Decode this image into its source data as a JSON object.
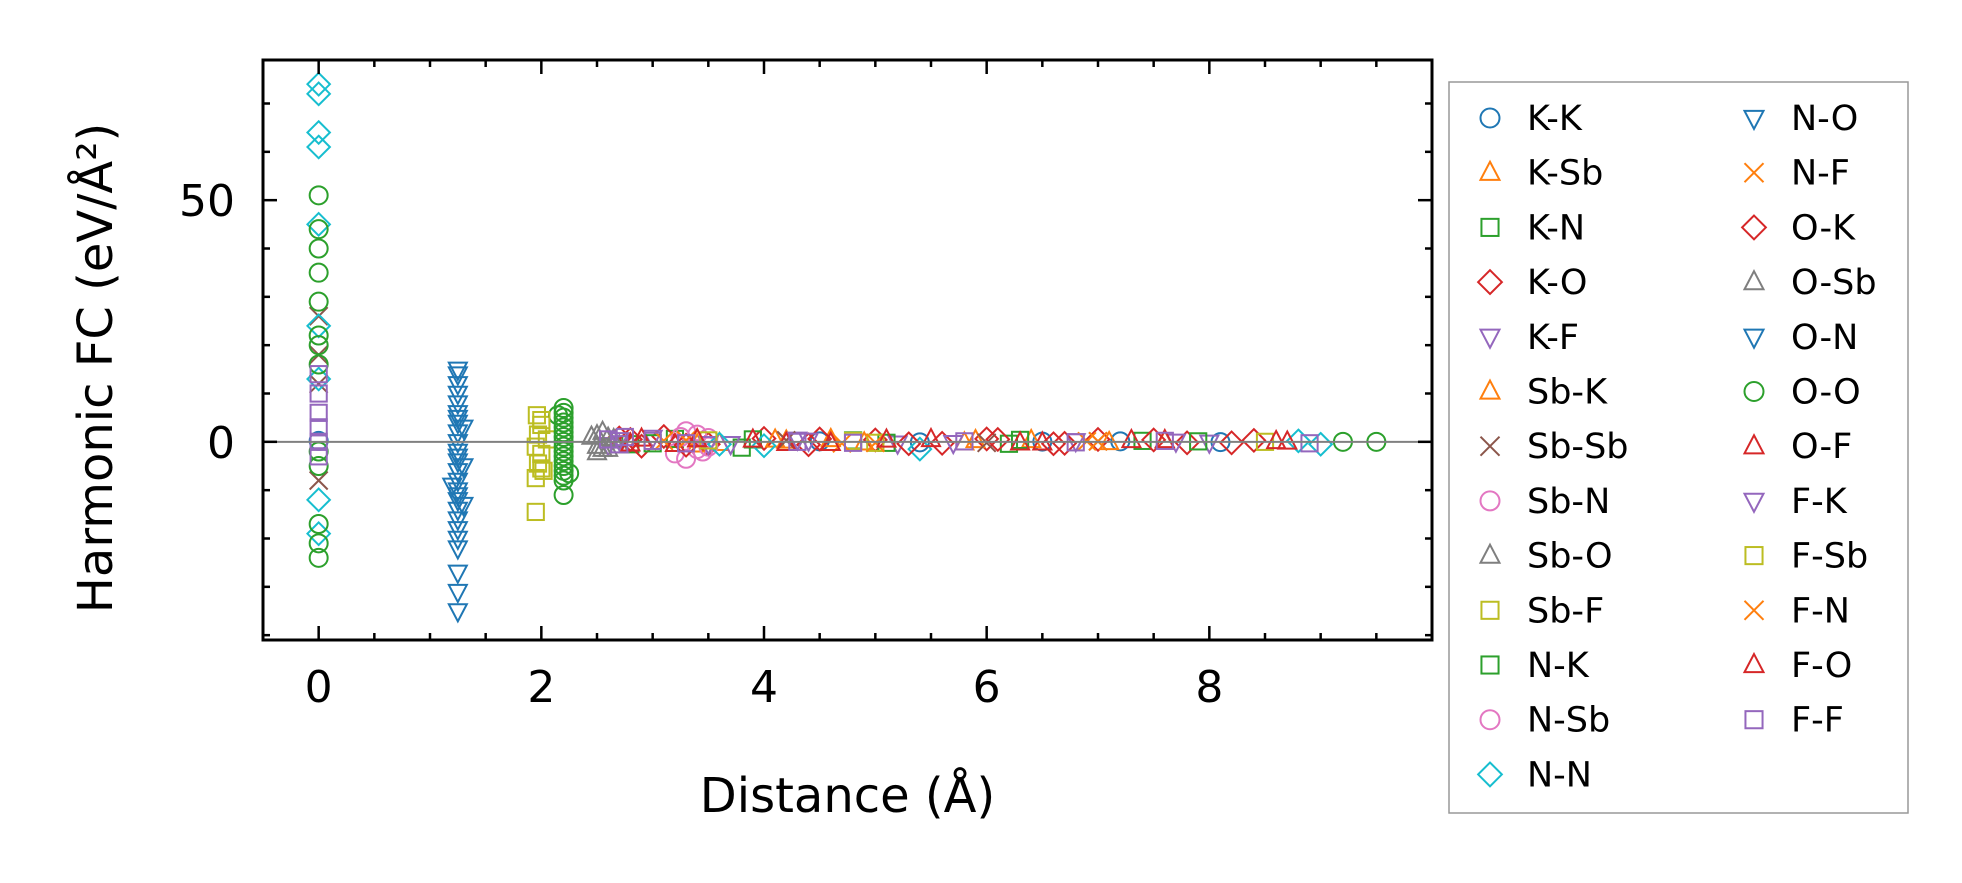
{
  "chart_data": {
    "type": "scatter",
    "xlabel": "Distance (Å)",
    "ylabel": "Harmonic FC (eV/Å²)",
    "xlim": [
      -0.5,
      10.0
    ],
    "ylim": [
      -41,
      79
    ],
    "xticks": [
      0,
      2,
      4,
      6,
      8
    ],
    "yticks": [
      0,
      50
    ],
    "x_minor_step": 0.5,
    "y_minor_step": 10,
    "zero_line": true,
    "legend_position": "outside-right",
    "series": [
      {
        "name": "K-K",
        "marker": "circle",
        "color": "#1f77b4",
        "points": [
          [
            0,
            0.2
          ],
          [
            4.5,
            0.1
          ],
          [
            5.4,
            -0.1
          ],
          [
            6.5,
            0.05
          ],
          [
            7.2,
            0.1
          ],
          [
            8.1,
            -0.05
          ]
        ]
      },
      {
        "name": "K-Sb",
        "marker": "triangle-up",
        "color": "#ff7f0e",
        "points": [
          [
            3.4,
            0.4
          ],
          [
            3.6,
            -0.3
          ],
          [
            4.2,
            0.2
          ],
          [
            4.6,
            0.5
          ],
          [
            5.8,
            -0.2
          ],
          [
            6.4,
            0.3
          ],
          [
            7.6,
            0.1
          ]
        ]
      },
      {
        "name": "K-N",
        "marker": "square",
        "color": "#2ca02c",
        "points": [
          [
            2.8,
            -0.5
          ],
          [
            3.2,
            0.6
          ],
          [
            3.8,
            -1.2
          ],
          [
            4.8,
            0.3
          ],
          [
            6.2,
            -0.4
          ],
          [
            7.4,
            0.2
          ]
        ]
      },
      {
        "name": "K-O",
        "marker": "diamond",
        "color": "#d62728",
        "points": [
          [
            2.7,
            0.8
          ],
          [
            2.9,
            -0.9
          ],
          [
            3.1,
            1.1
          ],
          [
            3.5,
            -0.5
          ],
          [
            4.0,
            0.7
          ],
          [
            4.4,
            -0.6
          ],
          [
            5.0,
            0.4
          ],
          [
            5.6,
            -0.3
          ],
          [
            6.0,
            0.6
          ],
          [
            6.6,
            -0.4
          ],
          [
            7.0,
            0.5
          ],
          [
            7.8,
            -0.2
          ],
          [
            8.4,
            0.3
          ]
        ]
      },
      {
        "name": "K-F",
        "marker": "triangle-down",
        "color": "#9467bd",
        "points": [
          [
            2.6,
            -0.6
          ],
          [
            3.0,
            0.9
          ],
          [
            3.7,
            -0.4
          ],
          [
            4.3,
            0.5
          ],
          [
            5.2,
            -0.3
          ],
          [
            6.8,
            0.2
          ],
          [
            8.0,
            -0.1
          ]
        ]
      },
      {
        "name": "Sb-K",
        "marker": "triangle-up",
        "color": "#ff7f0e",
        "points": [
          [
            3.4,
            -0.6
          ],
          [
            4.1,
            0.4
          ],
          [
            4.9,
            -0.2
          ],
          [
            5.9,
            0.3
          ],
          [
            7.1,
            -0.1
          ]
        ]
      },
      {
        "name": "Sb-Sb",
        "marker": "x",
        "color": "#8c564b",
        "points": [
          [
            0,
            26
          ],
          [
            0,
            18
          ],
          [
            0,
            12
          ],
          [
            0,
            -8
          ],
          [
            4.2,
            0.3
          ],
          [
            6.0,
            -0.2
          ],
          [
            7.0,
            0.1
          ]
        ]
      },
      {
        "name": "Sb-N",
        "marker": "circle",
        "color": "#e377c2",
        "points": [
          [
            3.2,
            -2.4
          ],
          [
            3.3,
            -3.5
          ],
          [
            3.4,
            1.5
          ],
          [
            3.5,
            -1.0
          ],
          [
            3.3,
            2.2
          ],
          [
            3.45,
            -2.0
          ]
        ]
      },
      {
        "name": "Sb-O",
        "marker": "triangle-up",
        "color": "#7f7f7f",
        "points": [
          [
            2.5,
            1.3
          ],
          [
            2.55,
            -1.5
          ],
          [
            2.6,
            0.8
          ],
          [
            2.5,
            -2.2
          ],
          [
            2.65,
            0.5
          ],
          [
            2.7,
            -0.8
          ]
        ]
      },
      {
        "name": "Sb-F",
        "marker": "square",
        "color": "#bcbd22",
        "points": [
          [
            1.95,
            -14.5
          ],
          [
            1.95,
            -7.5
          ],
          [
            1.97,
            -4.5
          ],
          [
            2.0,
            -2.5
          ],
          [
            1.97,
            1.5
          ],
          [
            2.0,
            3.5
          ],
          [
            1.96,
            5.5
          ],
          [
            2.02,
            -6
          ],
          [
            2.05,
            0.5
          ],
          [
            4.8,
            0.2
          ],
          [
            8.5,
            0.0
          ]
        ]
      },
      {
        "name": "N-K",
        "marker": "square",
        "color": "#2ca02c",
        "points": [
          [
            3.0,
            -0.3
          ],
          [
            3.9,
            0.5
          ],
          [
            5.1,
            -0.2
          ],
          [
            6.3,
            0.4
          ],
          [
            7.9,
            0.1
          ]
        ]
      },
      {
        "name": "N-Sb",
        "marker": "circle",
        "color": "#e377c2",
        "points": [
          [
            3.25,
            1.0
          ],
          [
            3.4,
            -1.5
          ],
          [
            3.5,
            0.8
          ]
        ]
      },
      {
        "name": "N-N",
        "marker": "diamond",
        "color": "#17becf",
        "points": [
          [
            0,
            74
          ],
          [
            0,
            72
          ],
          [
            0,
            64
          ],
          [
            0,
            61
          ],
          [
            0,
            45
          ],
          [
            0,
            24
          ],
          [
            0,
            13
          ],
          [
            0,
            -12
          ],
          [
            0,
            -19
          ],
          [
            3.6,
            -0.5
          ],
          [
            4.0,
            -0.8
          ],
          [
            5.4,
            -1.5
          ],
          [
            8.8,
            0.2
          ],
          [
            9.0,
            -0.5
          ]
        ]
      },
      {
        "name": "N-O",
        "marker": "triangle-down",
        "color": "#1f77b4",
        "points": [
          [
            1.25,
            15
          ],
          [
            1.25,
            14
          ],
          [
            1.25,
            12
          ],
          [
            1.25,
            10
          ],
          [
            1.25,
            8
          ],
          [
            1.25,
            6
          ],
          [
            1.25,
            4
          ],
          [
            1.25,
            2
          ],
          [
            1.25,
            0
          ],
          [
            1.25,
            -2
          ],
          [
            1.25,
            -4
          ],
          [
            1.25,
            -6
          ],
          [
            1.25,
            -8
          ],
          [
            1.25,
            -10
          ],
          [
            1.25,
            -12
          ],
          [
            1.25,
            -14
          ],
          [
            1.25,
            -16
          ],
          [
            1.25,
            -18
          ],
          [
            1.25,
            -20
          ],
          [
            1.25,
            -22
          ],
          [
            1.25,
            -27
          ],
          [
            1.25,
            -31
          ],
          [
            1.25,
            -35
          ],
          [
            1.3,
            3
          ],
          [
            1.3,
            -5
          ],
          [
            1.2,
            -9
          ],
          [
            1.3,
            -13
          ]
        ]
      },
      {
        "name": "N-F",
        "marker": "x",
        "color": "#ff7f0e",
        "points": [
          [
            3.1,
            0.2
          ],
          [
            4.7,
            -0.3
          ],
          [
            6.9,
            0.1
          ]
        ]
      },
      {
        "name": "O-K",
        "marker": "diamond",
        "color": "#d62728",
        "points": [
          [
            2.8,
            0.5
          ],
          [
            3.3,
            -0.7
          ],
          [
            4.5,
            0.6
          ],
          [
            5.3,
            -0.4
          ],
          [
            6.1,
            0.5
          ],
          [
            6.7,
            -0.3
          ],
          [
            7.5,
            0.4
          ],
          [
            8.2,
            -0.2
          ]
        ]
      },
      {
        "name": "O-Sb",
        "marker": "triangle-up",
        "color": "#7f7f7f",
        "points": [
          [
            2.45,
            1.0
          ],
          [
            2.5,
            -0.9
          ],
          [
            2.55,
            2.0
          ],
          [
            2.6,
            -1.5
          ],
          [
            2.65,
            0.2
          ]
        ]
      },
      {
        "name": "O-N",
        "marker": "triangle-down",
        "color": "#1f77b4",
        "points": [
          [
            1.25,
            5
          ],
          [
            1.25,
            -3
          ],
          [
            1.25,
            -11
          ]
        ]
      },
      {
        "name": "O-O",
        "marker": "circle",
        "color": "#2ca02c",
        "points": [
          [
            0,
            51
          ],
          [
            0,
            44
          ],
          [
            0,
            40
          ],
          [
            0,
            35
          ],
          [
            0,
            29
          ],
          [
            0,
            22
          ],
          [
            0,
            20
          ],
          [
            0,
            16
          ],
          [
            0,
            -2
          ],
          [
            0,
            -5
          ],
          [
            0,
            -17
          ],
          [
            0,
            -21
          ],
          [
            0,
            -24
          ],
          [
            2.2,
            7
          ],
          [
            2.2,
            6
          ],
          [
            2.2,
            5
          ],
          [
            2.2,
            4
          ],
          [
            2.2,
            3
          ],
          [
            2.2,
            2
          ],
          [
            2.2,
            1
          ],
          [
            2.2,
            0
          ],
          [
            2.2,
            -1
          ],
          [
            2.2,
            -2
          ],
          [
            2.2,
            -3
          ],
          [
            2.2,
            -4
          ],
          [
            2.2,
            -5
          ],
          [
            2.2,
            -6
          ],
          [
            2.2,
            -7
          ],
          [
            2.2,
            -8
          ],
          [
            2.2,
            -11
          ],
          [
            2.15,
            5.5
          ],
          [
            2.25,
            -6.5
          ],
          [
            9.2,
            0
          ],
          [
            9.5,
            0
          ]
        ]
      },
      {
        "name": "O-F",
        "marker": "triangle-up",
        "color": "#d62728",
        "points": [
          [
            2.9,
            0.6
          ],
          [
            3.2,
            -0.5
          ],
          [
            3.9,
            0.4
          ],
          [
            4.6,
            -0.3
          ],
          [
            5.5,
            0.5
          ],
          [
            6.3,
            -0.2
          ],
          [
            7.3,
            0.3
          ],
          [
            8.6,
            0.1
          ]
        ]
      },
      {
        "name": "F-K",
        "marker": "triangle-down",
        "color": "#9467bd",
        "points": [
          [
            2.7,
            0.4
          ],
          [
            3.5,
            -0.4
          ],
          [
            4.4,
            0.3
          ],
          [
            5.7,
            -0.2
          ],
          [
            7.7,
            0.1
          ]
        ]
      },
      {
        "name": "F-Sb",
        "marker": "square",
        "color": "#bcbd22",
        "points": [
          [
            2.0,
            4.5
          ],
          [
            1.95,
            -1.0
          ],
          [
            2.0,
            -5.5
          ],
          [
            3.5,
            0.3
          ],
          [
            5.0,
            -0.2
          ]
        ]
      },
      {
        "name": "F-N",
        "marker": "x",
        "color": "#ff7f0e",
        "points": [
          [
            3.3,
            0.3
          ],
          [
            5.0,
            -0.2
          ],
          [
            7.0,
            0.1
          ]
        ]
      },
      {
        "name": "F-O",
        "marker": "triangle-up",
        "color": "#d62728",
        "points": [
          [
            2.8,
            -0.4
          ],
          [
            3.4,
            0.5
          ],
          [
            4.2,
            -0.3
          ],
          [
            5.1,
            0.4
          ],
          [
            6.5,
            -0.2
          ],
          [
            7.6,
            0.3
          ],
          [
            8.7,
            0.0
          ]
        ]
      },
      {
        "name": "F-F",
        "marker": "square",
        "color": "#9467bd",
        "points": [
          [
            0,
            14
          ],
          [
            0,
            10
          ],
          [
            0,
            6
          ],
          [
            0,
            3
          ],
          [
            0,
            0
          ],
          [
            0,
            -3
          ],
          [
            2.6,
            0.5
          ],
          [
            2.7,
            -0.5
          ],
          [
            2.75,
            1.0
          ],
          [
            3.0,
            0.2
          ],
          [
            3.3,
            -0.3
          ],
          [
            4.3,
            0.0
          ],
          [
            4.8,
            -0.2
          ],
          [
            5.8,
            0.1
          ],
          [
            6.8,
            -0.1
          ],
          [
            7.6,
            0.2
          ],
          [
            8.9,
            -0.3
          ]
        ]
      }
    ]
  }
}
